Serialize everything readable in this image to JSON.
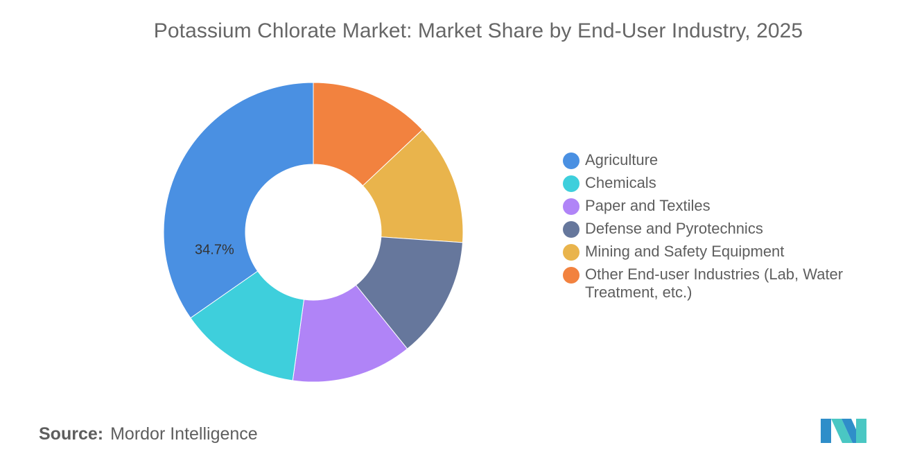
{
  "title": "Potassium Chlorate Market: Market Share by End-User Industry, 2025",
  "source": {
    "prefix": "Source:",
    "name": "Mordor Intelligence"
  },
  "logo": {
    "icon": "mordor-intelligence-logo-icon",
    "colors": [
      "#2f8ec9",
      "#4ac7c3"
    ]
  },
  "chart_data": {
    "type": "pie",
    "style": "donut",
    "legend_position": "right",
    "labels": [
      "Agriculture",
      "Chemicals",
      "Paper and Textiles",
      "Defense and Pyrotechnics",
      "Mining and Safety Equipment",
      "Other End-user Industries (Lab, Water Treatment, etc.)"
    ],
    "values": [
      34.7,
      13.1,
      13.0,
      13.1,
      13.1,
      13.0
    ],
    "colors": [
      "#4a90e2",
      "#3ecfdc",
      "#b084f7",
      "#66779c",
      "#e9b44c",
      "#f2823f"
    ],
    "data_labels": [
      "34.7%",
      "",
      "",
      "",
      "",
      ""
    ],
    "start_angle": 0,
    "draw_order": [
      5,
      4,
      3,
      2,
      1,
      0
    ],
    "direction": "clockwise"
  }
}
